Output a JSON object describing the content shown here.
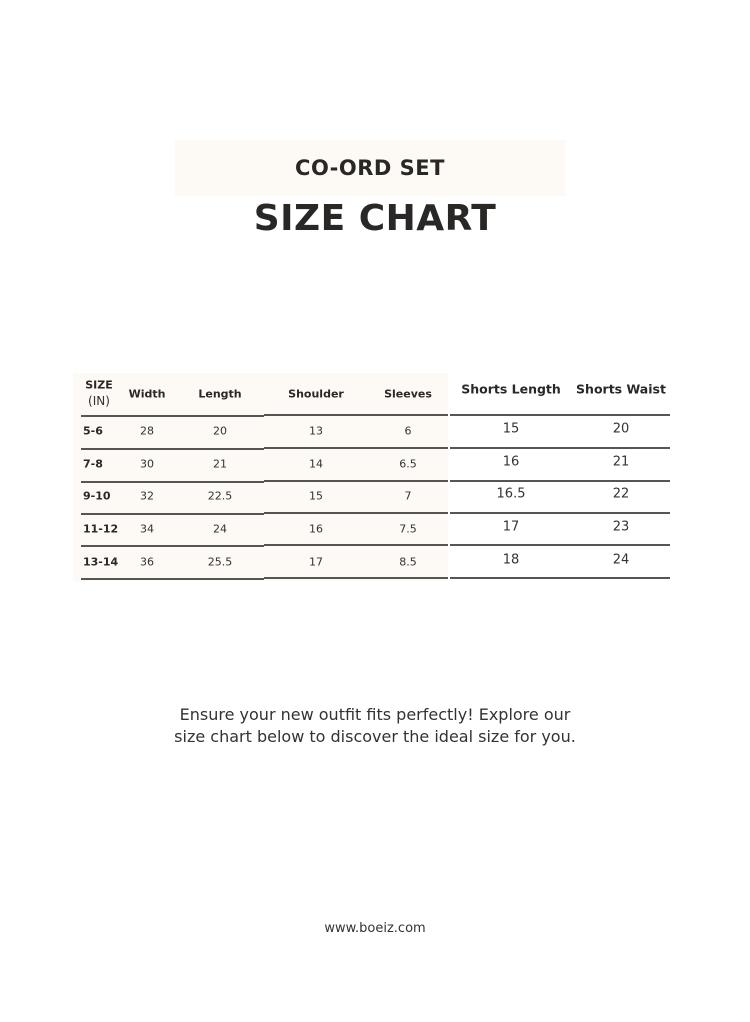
{
  "header": {
    "subtitle": "CO-ORD SET",
    "title": "SIZE CHART"
  },
  "table": {
    "size_header": {
      "line1": "SIZE",
      "line2": "(IN)"
    },
    "columns": [
      "Width",
      "Length",
      "Shoulder",
      "Sleeves",
      "Shorts Length",
      "Shorts Waist"
    ],
    "rows": [
      {
        "size": "5-6",
        "values": [
          "28",
          "20",
          "13",
          "6",
          "15",
          "20"
        ]
      },
      {
        "size": "7-8",
        "values": [
          "30",
          "21",
          "14",
          "6.5",
          "16",
          "21"
        ]
      },
      {
        "size": "9-10",
        "values": [
          "32",
          "22.5",
          "15",
          "7",
          "16.5",
          "22"
        ]
      },
      {
        "size": "11-12",
        "values": [
          "34",
          "24",
          "16",
          "7.5",
          "17",
          "23"
        ]
      },
      {
        "size": "13-14",
        "values": [
          "36",
          "25.5",
          "17",
          "8.5",
          "18",
          "24"
        ]
      }
    ]
  },
  "description": {
    "line1": "Ensure your new outfit fits perfectly! Explore our",
    "line2": "size chart below to discover the ideal size for you."
  },
  "footer": {
    "website": "www.boeiz.com"
  },
  "colors": {
    "text": "#2a2727",
    "cream_background": "#fdf9f4",
    "rule": "#555555"
  }
}
